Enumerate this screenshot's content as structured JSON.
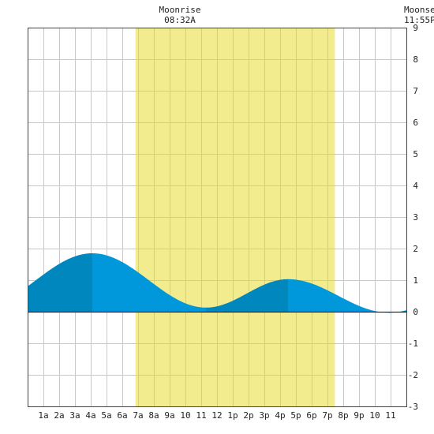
{
  "header": {
    "moonrise_label": "Moonrise",
    "moonrise_time": "08:32A",
    "moonset_label": "Moonset",
    "moonset_time": "11:55P"
  },
  "chart_data": {
    "type": "area",
    "title": "",
    "xlabel": "",
    "ylabel": "",
    "xlim": [
      0,
      24
    ],
    "ylim": [
      -3,
      9
    ],
    "grid": true,
    "x_tick_labels": [
      "1a",
      "2a",
      "3a",
      "4a",
      "5a",
      "6a",
      "7a",
      "8a",
      "9a",
      "10",
      "11",
      "12",
      "1p",
      "2p",
      "3p",
      "4p",
      "5p",
      "6p",
      "7p",
      "8p",
      "9p",
      "10",
      "11"
    ],
    "y_tick_labels": [
      "9",
      "8",
      "7",
      "6",
      "5",
      "4",
      "3",
      "2",
      "1",
      "0",
      "-1",
      "-2",
      "-3"
    ],
    "daylight": {
      "start_hour": 6.83,
      "end_hour": 19.47
    },
    "moonrise_hour": 8.53,
    "moonset_hour": 23.92,
    "tide_extremes": [
      {
        "hour": 4.1,
        "height": 1.85,
        "kind": "high"
      },
      {
        "hour": 11.3,
        "height": 0.13,
        "kind": "low"
      },
      {
        "hour": 16.5,
        "height": 1.03,
        "kind": "high"
      },
      {
        "hour": 22.9,
        "height": -0.03,
        "kind": "low"
      }
    ],
    "series": [
      {
        "values_x": [
          0,
          4.1,
          11.3,
          16.5,
          22.9,
          24
        ],
        "values_y": [
          0.5,
          1.85,
          0.13,
          1.03,
          -0.03,
          0.25
        ]
      }
    ],
    "colors": {
      "daylight": "#f3ec8f",
      "tide_rising": "#0088be",
      "tide_falling": "#0098da",
      "grid": "#c8c8c8",
      "frame": "#444444",
      "zero_line": "#000000"
    }
  }
}
